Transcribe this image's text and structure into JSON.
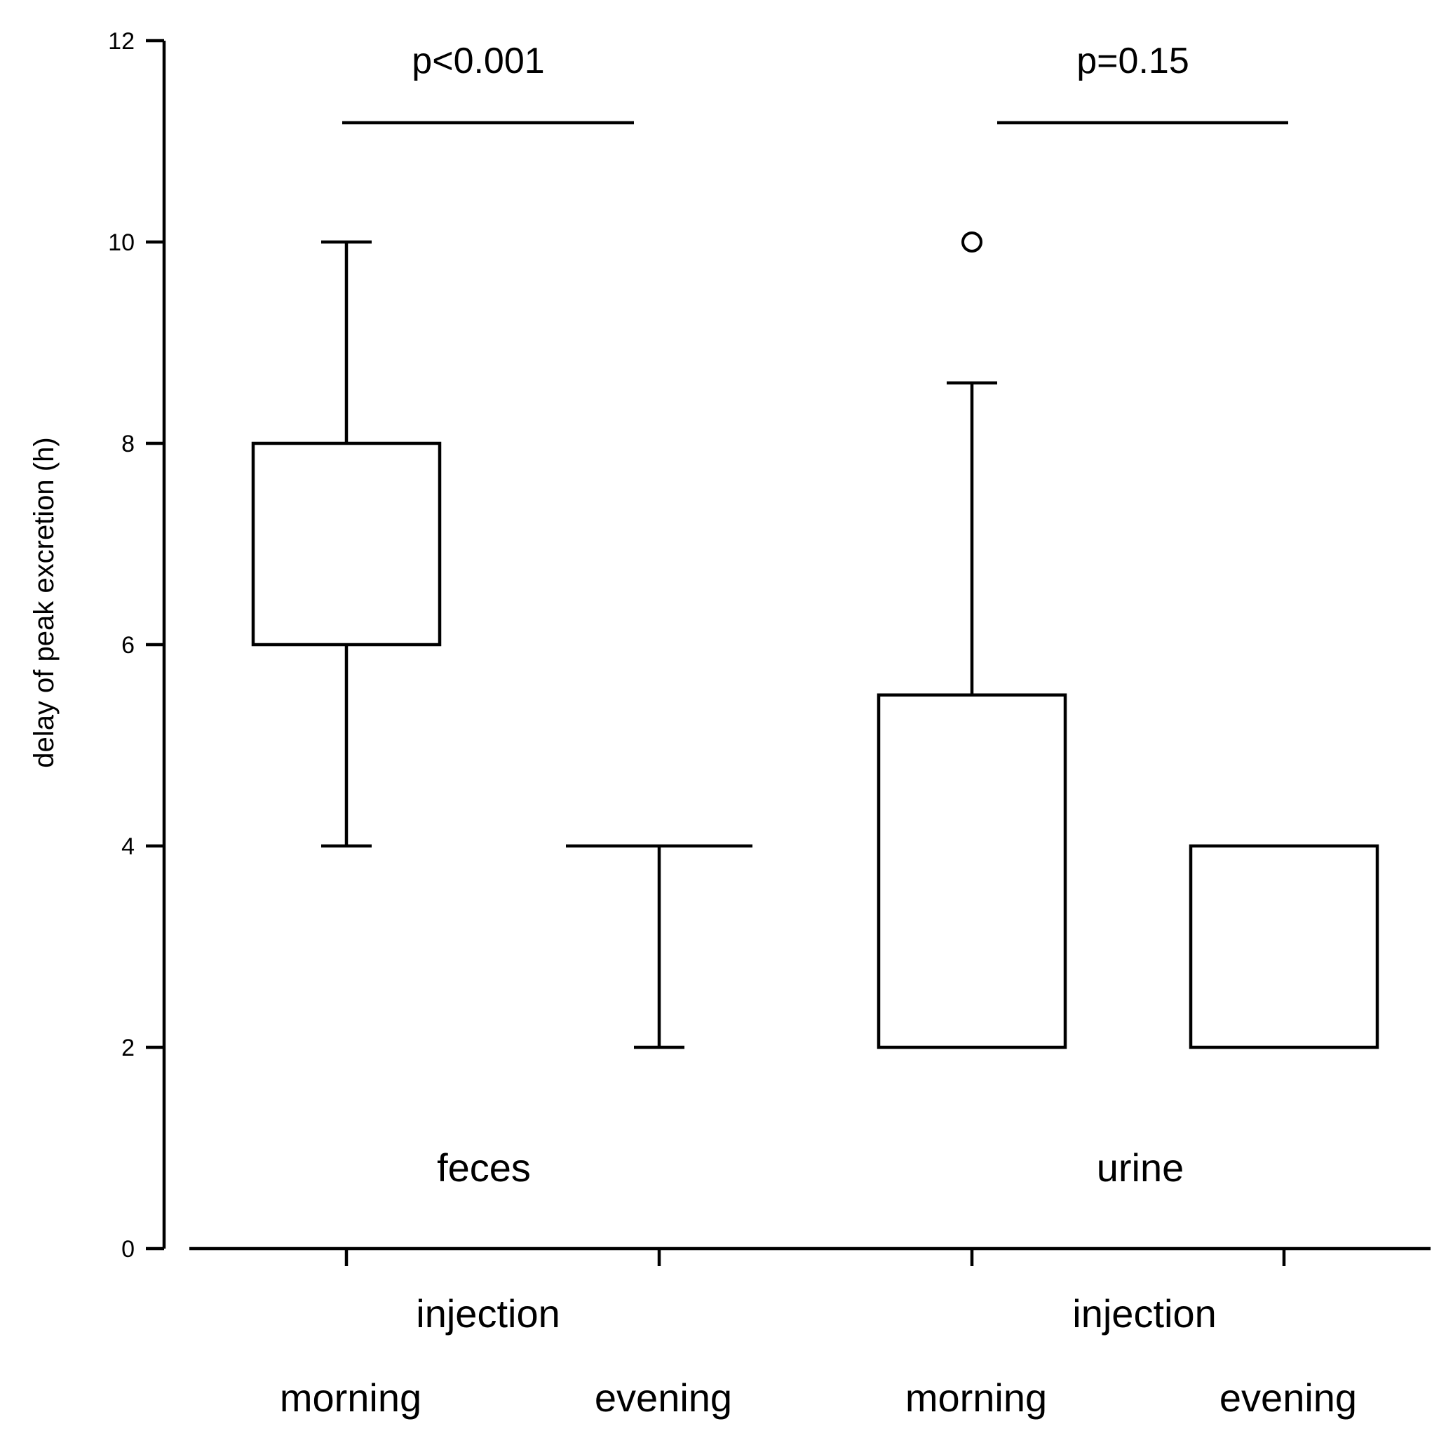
{
  "chart_data": {
    "type": "boxplot",
    "ylabel": "delay of peak excretion (h)",
    "ylim": [
      0,
      12
    ],
    "yticks": [
      0,
      2,
      4,
      6,
      8,
      10,
      12
    ],
    "groups": [
      {
        "name": "feces",
        "xlabel": "injection",
        "pvalue": "p<0.001",
        "boxes": [
          {
            "label": "morning",
            "whisker_low": 4,
            "q1": 6,
            "median": 6,
            "q3": 8,
            "whisker_high": 10,
            "outliers": []
          },
          {
            "label": "evening",
            "whisker_low": 2,
            "q1": 4,
            "median": 4,
            "q3": 4,
            "whisker_high": 4,
            "outliers": []
          }
        ]
      },
      {
        "name": "urine",
        "xlabel": "injection",
        "pvalue": "p=0.15",
        "boxes": [
          {
            "label": "morning",
            "whisker_low": 2,
            "q1": 2,
            "median": 2,
            "q3": 5.5,
            "whisker_high": 8.6,
            "outliers": [
              10
            ]
          },
          {
            "label": "evening",
            "whisker_low": 2,
            "q1": 2,
            "median": 2,
            "q3": 4,
            "whisker_high": 4,
            "outliers": []
          }
        ]
      }
    ]
  }
}
